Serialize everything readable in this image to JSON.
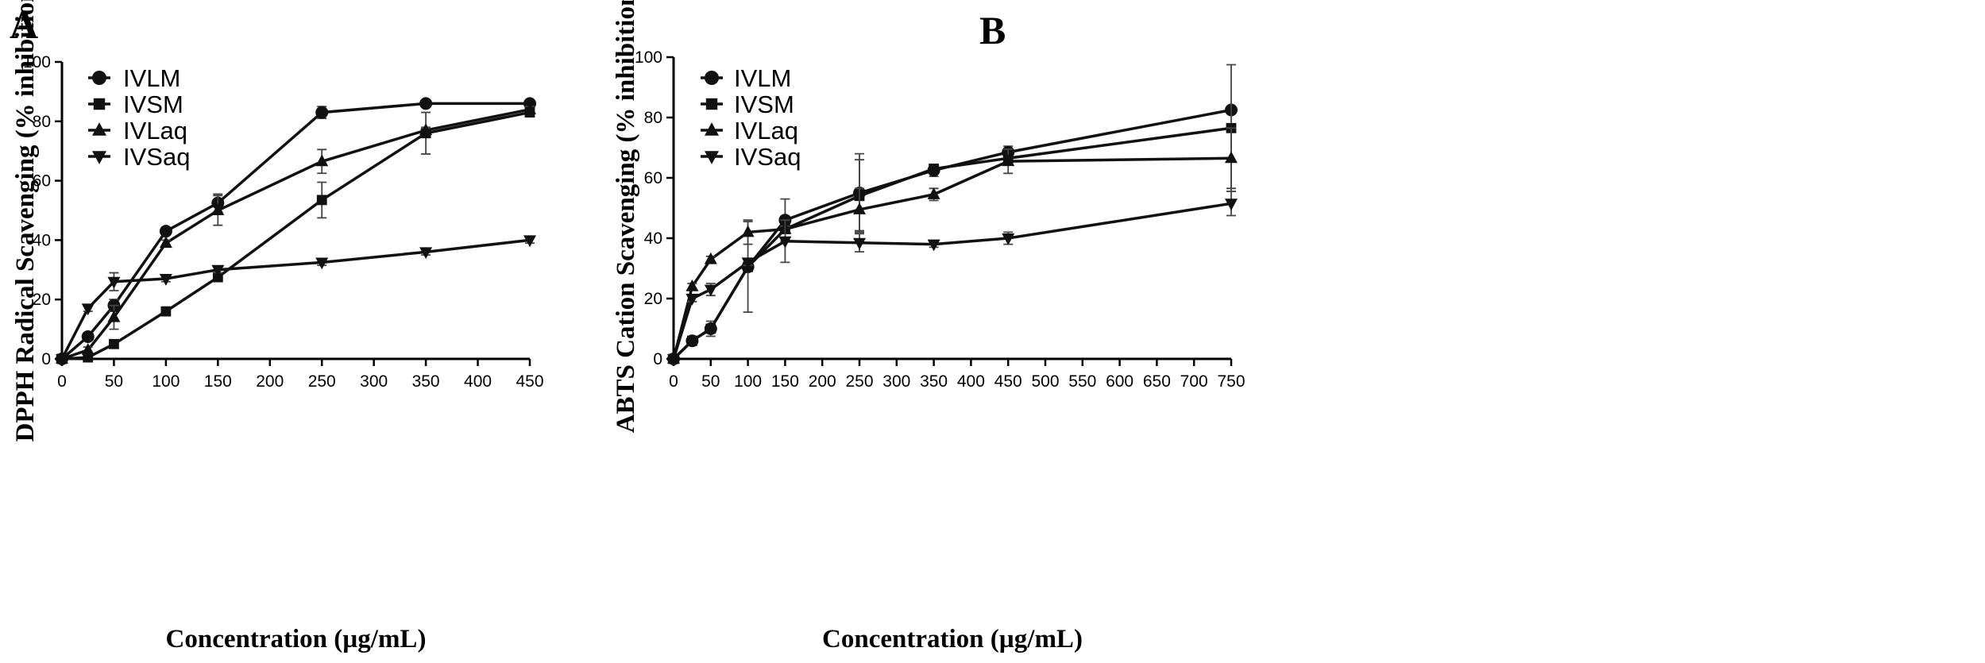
{
  "figure": {
    "panels": [
      "A",
      "B"
    ]
  },
  "chart_data": [
    {
      "type": "line",
      "panel_label": "A",
      "title": "",
      "xlabel": "Concentration (µg/mL)",
      "ylabel": "DPPH Radical Scavenging (% inhibition)",
      "xlim": [
        0,
        450
      ],
      "ylim": [
        0,
        100
      ],
      "x_ticks": [
        0,
        50,
        100,
        150,
        200,
        250,
        300,
        350,
        400,
        450
      ],
      "y_ticks": [
        0,
        20,
        40,
        60,
        80,
        100
      ],
      "legend_position": "top-left",
      "series": [
        {
          "name": "IVLM",
          "marker": "circle",
          "x": [
            0,
            25,
            50,
            100,
            150,
            250,
            350,
            450
          ],
          "y": [
            0,
            7.5,
            18,
            43,
            52.5,
            83,
            86,
            86
          ],
          "err": [
            0,
            1,
            2,
            1,
            3,
            2,
            1,
            1
          ]
        },
        {
          "name": "IVSM",
          "marker": "square",
          "x": [
            0,
            25,
            50,
            100,
            150,
            250,
            350,
            450
          ],
          "y": [
            0,
            0.5,
            5,
            16,
            27.5,
            53.5,
            76,
            83
          ],
          "err": [
            0,
            0.5,
            0.5,
            0.5,
            1,
            6,
            7,
            1
          ]
        },
        {
          "name": "IVLaq",
          "marker": "triangle-up",
          "x": [
            0,
            25,
            50,
            100,
            150,
            250,
            350,
            450
          ],
          "y": [
            0,
            3,
            14,
            39,
            50,
            66.5,
            77,
            84
          ],
          "err": [
            0,
            1,
            4,
            1,
            5,
            4,
            1,
            1
          ]
        },
        {
          "name": "IVSaq",
          "marker": "triangle-down",
          "x": [
            0,
            25,
            50,
            100,
            150,
            250,
            350,
            450
          ],
          "y": [
            0,
            17,
            26,
            27,
            30,
            32.5,
            36,
            40
          ],
          "err": [
            0,
            1,
            3,
            1,
            1,
            1,
            1,
            1
          ]
        }
      ]
    },
    {
      "type": "line",
      "panel_label": "B",
      "title": "",
      "xlabel": "Concentration (µg/mL)",
      "ylabel": "ABTS Cation Scavenging (% inhibition)",
      "xlim": [
        0,
        750
      ],
      "ylim": [
        0,
        100
      ],
      "x_ticks": [
        0,
        50,
        100,
        150,
        200,
        250,
        300,
        350,
        400,
        450,
        500,
        550,
        600,
        650,
        700,
        750
      ],
      "y_ticks": [
        0,
        20,
        40,
        60,
        80,
        100
      ],
      "legend_position": "top-left",
      "series": [
        {
          "name": "IVLM",
          "marker": "circle",
          "x": [
            0,
            25,
            50,
            100,
            150,
            250,
            350,
            450,
            750
          ],
          "y": [
            0,
            6,
            10,
            30.5,
            46,
            55,
            62.5,
            68.5,
            82.5
          ],
          "err": [
            0,
            1.5,
            2.5,
            1.5,
            7,
            13,
            2,
            2,
            1
          ]
        },
        {
          "name": "IVSM",
          "marker": "square",
          "x": [
            0,
            25,
            50,
            100,
            150,
            250,
            350,
            450,
            750
          ],
          "y": [
            0,
            6,
            10,
            30.5,
            43,
            54,
            63,
            66.5,
            76.5
          ],
          "err": [
            0,
            1,
            1,
            15,
            1,
            12,
            1,
            1,
            21
          ]
        },
        {
          "name": "IVLaq",
          "marker": "triangle-up",
          "x": [
            0,
            25,
            50,
            100,
            150,
            250,
            350,
            450,
            750
          ],
          "y": [
            0,
            24,
            33,
            42,
            43,
            49.5,
            54.5,
            65.5,
            66.5
          ],
          "err": [
            0,
            1,
            1,
            4,
            1,
            7,
            2,
            4,
            10
          ]
        },
        {
          "name": "IVSaq",
          "marker": "triangle-down",
          "x": [
            0,
            25,
            50,
            100,
            150,
            250,
            350,
            450,
            750
          ],
          "y": [
            0,
            20,
            23,
            32,
            39,
            38.5,
            38,
            40,
            51.5
          ],
          "err": [
            0,
            1,
            2,
            1,
            7,
            3,
            1,
            2,
            4
          ]
        }
      ]
    }
  ]
}
